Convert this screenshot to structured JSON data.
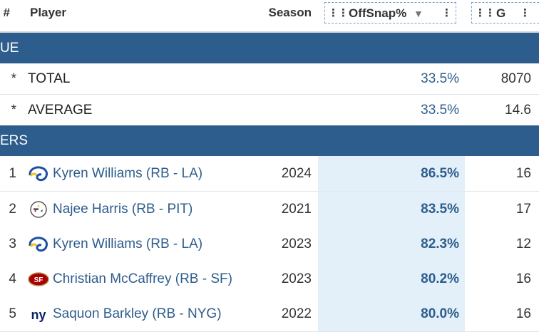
{
  "header": {
    "rank": "#",
    "player": "Player",
    "season": "Season",
    "offsnap": "OffSnap%",
    "games": "G"
  },
  "groups": {
    "league": "UE",
    "players": "ERS"
  },
  "summary": [
    {
      "rank": "*",
      "label": "TOTAL",
      "offsnap": "33.5%",
      "games": "8070"
    },
    {
      "rank": "*",
      "label": "AVERAGE",
      "offsnap": "33.5%",
      "games": "14.6"
    }
  ],
  "rows": [
    {
      "rank": "1",
      "player": "Kyren Williams (RB - LA)",
      "logo": "rams-logo-icon",
      "season": "2024",
      "offsnap": "86.5%",
      "games": "16"
    },
    {
      "rank": "2",
      "player": "Najee Harris (RB - PIT)",
      "logo": "steelers-logo-icon",
      "season": "2021",
      "offsnap": "83.5%",
      "games": "17"
    },
    {
      "rank": "3",
      "player": "Kyren Williams (RB - LA)",
      "logo": "rams-logo-icon",
      "season": "2023",
      "offsnap": "82.3%",
      "games": "12"
    },
    {
      "rank": "4",
      "player": "Christian McCaffrey (RB - SF)",
      "logo": "49ers-logo-icon",
      "season": "2023",
      "offsnap": "80.2%",
      "games": "16"
    },
    {
      "rank": "5",
      "player": "Saquon Barkley (RB - NYG)",
      "logo": "giants-logo-icon",
      "season": "2022",
      "offsnap": "80.0%",
      "games": "16"
    }
  ],
  "colors": {
    "group_band": "#2d5d8c",
    "link": "#2d5d8c",
    "sorted_column_bg": "#e3f0fa"
  }
}
